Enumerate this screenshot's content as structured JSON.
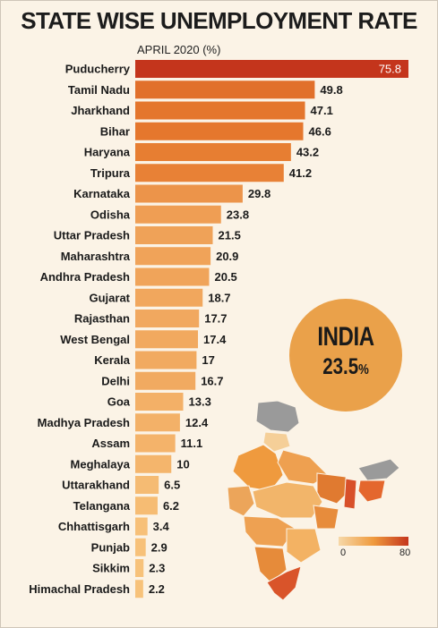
{
  "chart_data": {
    "type": "bar",
    "orientation": "horizontal",
    "title": "STATE WISE UNEMPLOYMENT RATE",
    "subtitle": "APRIL 2020 (%)",
    "categories": [
      "Puducherry",
      "Tamil Nadu",
      "Jharkhand",
      "Bihar",
      "Haryana",
      "Tripura",
      "Karnataka",
      "Odisha",
      "Uttar Pradesh",
      "Maharashtra",
      "Andhra Pradesh",
      "Gujarat",
      "Rajasthan",
      "West Bengal",
      "Kerala",
      "Delhi",
      "Goa",
      "Madhya Pradesh",
      "Assam",
      "Meghalaya",
      "Uttarakhand",
      "Telangana",
      "Chhattisgarh",
      "Punjab",
      "Sikkim",
      "Himachal Pradesh"
    ],
    "values": [
      75.8,
      49.8,
      47.1,
      46.6,
      43.2,
      41.2,
      29.8,
      23.8,
      21.5,
      20.9,
      20.5,
      18.7,
      17.7,
      17.4,
      17,
      16.7,
      13.3,
      12.4,
      11.1,
      10,
      6.5,
      6.2,
      3.4,
      2.9,
      2.3,
      2.2
    ],
    "value_labels": [
      "75.8",
      "49.8",
      "47.1",
      "46.6",
      "43.2",
      "41.2",
      "29.8",
      "23.8",
      "21.5",
      "20.9",
      "20.5",
      "18.7",
      "17.7",
      "17.4",
      "17",
      "16.7",
      "13.3",
      "12.4",
      "11.1",
      "10",
      "6.5",
      "6.2",
      "3.4",
      "2.9",
      "2.3",
      "2.2"
    ],
    "xlim": [
      0,
      75.8
    ],
    "grid": false,
    "colors": {
      "high": "#c4351c",
      "mid": "#e67a2e",
      "low": "#f8c67e"
    }
  },
  "india": {
    "name": "INDIA",
    "rate": "23.5",
    "unit": "%"
  },
  "legend": {
    "min": "0",
    "max": "80"
  }
}
